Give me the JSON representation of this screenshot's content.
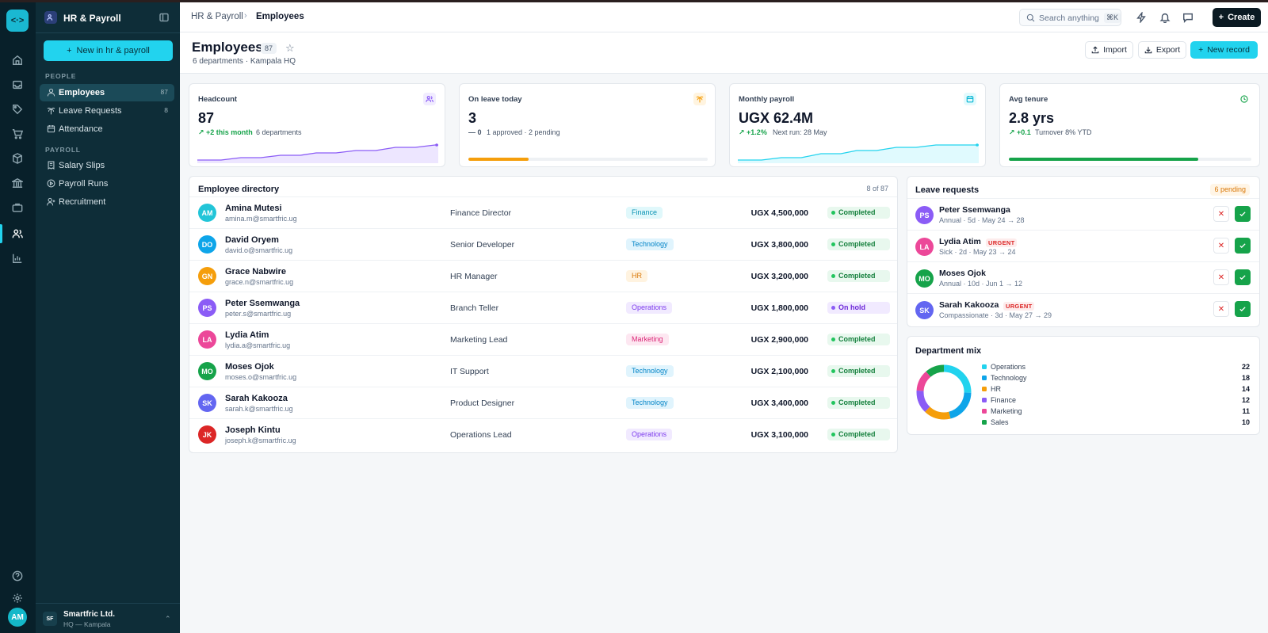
{
  "app": {
    "logo_glyph": "<·>",
    "module_title": "HR & Payroll",
    "user_initials": "AM"
  },
  "sidebar": {
    "new_button_label": "New in  hr & payroll",
    "sections": [
      {
        "label": "PEOPLE"
      },
      {
        "label": "PAYROLL"
      }
    ],
    "items": [
      {
        "label": "Employees",
        "count": "87",
        "icon": "user-icon",
        "active": true
      },
      {
        "label": "Leave Requests",
        "count": "8",
        "icon": "palm-tree-icon",
        "active": false
      },
      {
        "label": "Attendance",
        "count": "",
        "icon": "calendar-icon",
        "active": false
      },
      {
        "label": "Salary Slips",
        "count": "",
        "icon": "receipt-icon",
        "active": false
      },
      {
        "label": "Payroll Runs",
        "count": "",
        "icon": "play-circle-icon",
        "active": false
      },
      {
        "label": "Recruitment",
        "count": "",
        "icon": "user-plus-icon",
        "active": false
      }
    ],
    "org": {
      "initials": "SF",
      "name": "Smartfric Ltd.",
      "sub": "HQ — Kampala"
    }
  },
  "topbar": {
    "breadcrumb": [
      "HR & Payroll",
      "Employees"
    ],
    "search_placeholder": "Search anything",
    "search_shortcut": "⌘K",
    "create_label": "Create"
  },
  "page": {
    "title": "Employees",
    "count": "87",
    "subtitle": "6 departments · Kampala HQ",
    "import_label": "Import",
    "export_label": "Export",
    "new_record_label": "New record"
  },
  "kpis": [
    {
      "label": "Headcount",
      "value": "87",
      "delta": "+2 this month",
      "note": "6 departments",
      "icon": "users-icon",
      "color": "#8b5cf6"
    },
    {
      "label": "On leave today",
      "value": "3",
      "delta": "0",
      "note": "1 approved · 2 pending",
      "icon": "palm-tree-icon",
      "color": "#f59e0b",
      "progress": 0.25
    },
    {
      "label": "Monthly payroll",
      "value": "UGX 62.4M",
      "delta": "+1.2%",
      "note": "Next run: 28 May",
      "icon": "calendar-icon",
      "color": "#22d3ee"
    },
    {
      "label": "Avg tenure",
      "value": "2.8 yrs",
      "delta": "+0.1",
      "note": "Turnover 8% YTD",
      "icon": "clock-icon",
      "color": "#16a34a",
      "progress": 0.78
    }
  ],
  "directory": {
    "title": "Employee directory",
    "count": "8 of 87",
    "rows": [
      {
        "initials": "AM",
        "name": "Amina Mutesi",
        "email": "amina.m@smartfric.ug",
        "role": "Finance Director",
        "dept": "Finance",
        "salary": "UGX 4,500,000",
        "status": "Completed",
        "avatar_color": "#22c5d8"
      },
      {
        "initials": "DO",
        "name": "David Oryem",
        "email": "david.o@smartfric.ug",
        "role": "Senior Developer",
        "dept": "Technology",
        "salary": "UGX 3,800,000",
        "status": "Completed",
        "avatar_color": "#0ea5e9"
      },
      {
        "initials": "GN",
        "name": "Grace Nabwire",
        "email": "grace.n@smartfric.ug",
        "role": "HR Manager",
        "dept": "HR",
        "salary": "UGX 3,200,000",
        "status": "Completed",
        "avatar_color": "#f59e0b"
      },
      {
        "initials": "PS",
        "name": "Peter Ssemwanga",
        "email": "peter.s@smartfric.ug",
        "role": "Branch Teller",
        "dept": "Operations",
        "salary": "UGX 1,800,000",
        "status": "On hold",
        "avatar_color": "#8b5cf6"
      },
      {
        "initials": "LA",
        "name": "Lydia Atim",
        "email": "lydia.a@smartfric.ug",
        "role": "Marketing Lead",
        "dept": "Marketing",
        "salary": "UGX 2,900,000",
        "status": "Completed",
        "avatar_color": "#ec4899"
      },
      {
        "initials": "MO",
        "name": "Moses Ojok",
        "email": "moses.o@smartfric.ug",
        "role": "IT Support",
        "dept": "Technology",
        "salary": "UGX 2,100,000",
        "status": "Completed",
        "avatar_color": "#16a34a"
      },
      {
        "initials": "SK",
        "name": "Sarah Kakooza",
        "email": "sarah.k@smartfric.ug",
        "role": "Product Designer",
        "dept": "Technology",
        "salary": "UGX 3,400,000",
        "status": "Completed",
        "avatar_color": "#6366f1"
      },
      {
        "initials": "JK",
        "name": "Joseph Kintu",
        "email": "joseph.k@smartfric.ug",
        "role": "Operations Lead",
        "dept": "Operations",
        "salary": "UGX 3,100,000",
        "status": "Completed",
        "avatar_color": "#dc2626"
      }
    ]
  },
  "leave": {
    "title": "Leave requests",
    "pending_label": "6 pending",
    "urgent_label": "URGENT",
    "rows": [
      {
        "initials": "PS",
        "name": "Peter Ssemwanga",
        "detail": "Annual · 5d · May 24 → 28",
        "urgent": false,
        "avatar_color": "#8b5cf6"
      },
      {
        "initials": "LA",
        "name": "Lydia Atim",
        "detail": "Sick · 2d · May 23 → 24",
        "urgent": true,
        "avatar_color": "#ec4899"
      },
      {
        "initials": "MO",
        "name": "Moses Ojok",
        "detail": "Annual · 10d · Jun 1 → 12",
        "urgent": false,
        "avatar_color": "#16a34a"
      },
      {
        "initials": "SK",
        "name": "Sarah Kakooza",
        "detail": "Compassionate · 3d · May 27 → 29",
        "urgent": true,
        "avatar_color": "#6366f1"
      }
    ]
  },
  "department_mix": {
    "title": "Department mix",
    "items": [
      {
        "label": "Operations",
        "value": 22,
        "color": "#22d3ee"
      },
      {
        "label": "Technology",
        "value": 18,
        "color": "#0ea5e9"
      },
      {
        "label": "HR",
        "value": 14,
        "color": "#f59e0b"
      },
      {
        "label": "Finance",
        "value": 12,
        "color": "#8b5cf6"
      },
      {
        "label": "Marketing",
        "value": 11,
        "color": "#ec4899"
      },
      {
        "label": "Sales",
        "value": 10,
        "color": "#16a34a"
      }
    ]
  },
  "colors": {
    "accent": "#22d3ee",
    "success": "#16a34a",
    "warning": "#f59e0b",
    "sidebar_bg": "#0e2d38",
    "rail_bg": "#08202a"
  }
}
